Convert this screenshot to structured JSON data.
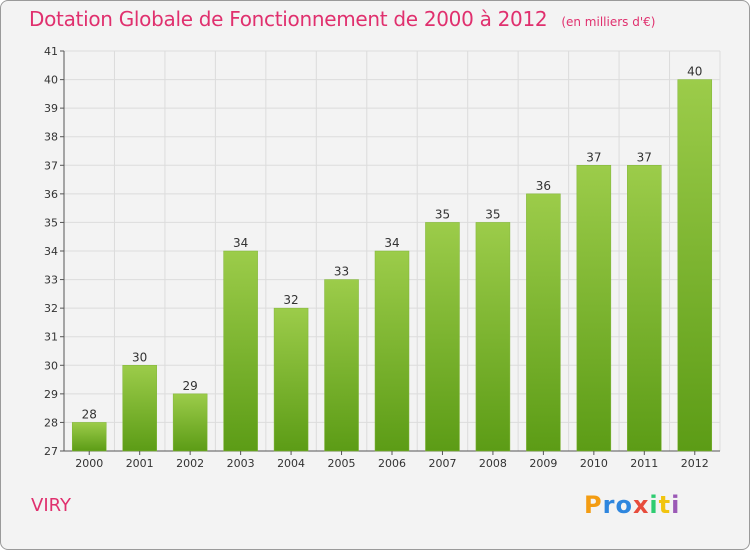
{
  "header": {
    "title": "Dotation Globale de Fonctionnement de 2000 à 2012",
    "unit": "(en milliers d'€)"
  },
  "footer": {
    "commune": "VIRY",
    "logo_text": "Proxiti",
    "logo_colors": [
      "#f39c12",
      "#2e86de",
      "#2e86de",
      "#e74c3c",
      "#2ecc71",
      "#f1c40f",
      "#9b59b6"
    ]
  },
  "colors": {
    "bar_top": "#9ccc4a",
    "bar_bottom": "#5c9c16",
    "title": "#e0306e",
    "grid": "#dcdcdc",
    "axis": "#555555"
  },
  "chart_data": {
    "type": "bar",
    "categories": [
      "2000",
      "2001",
      "2002",
      "2003",
      "2004",
      "2005",
      "2006",
      "2007",
      "2008",
      "2009",
      "2010",
      "2011",
      "2012"
    ],
    "values": [
      28,
      30,
      29,
      34,
      32,
      33,
      34,
      35,
      35,
      36,
      37,
      37,
      40
    ],
    "ylim": [
      27,
      41
    ],
    "yticks": [
      27,
      28,
      29,
      30,
      31,
      32,
      33,
      34,
      35,
      36,
      37,
      38,
      39,
      40,
      41
    ],
    "grid": true,
    "xlabel": "",
    "ylabel": ""
  }
}
